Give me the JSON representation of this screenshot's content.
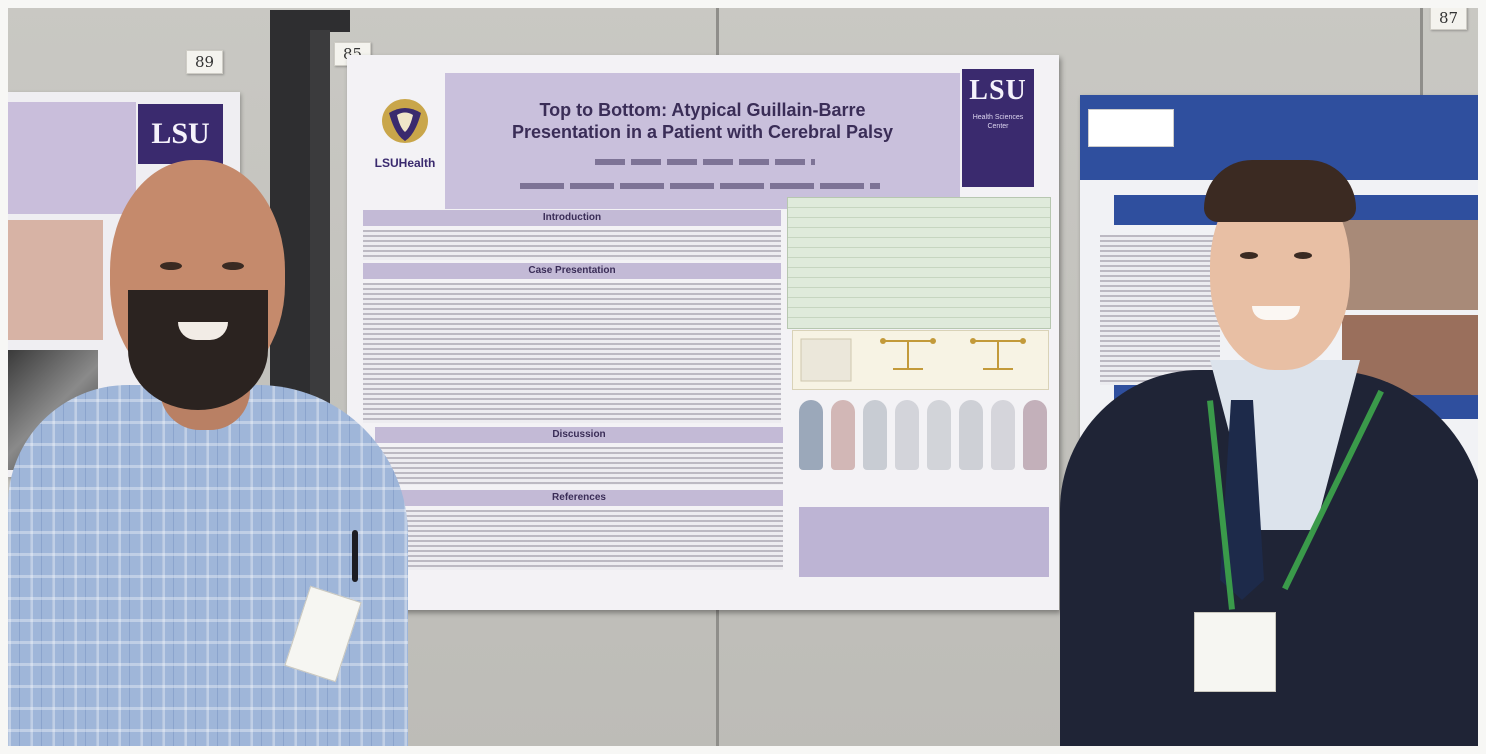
{
  "scene": {
    "description_hidden": false,
    "tags": {
      "left": "89",
      "center": "85",
      "right": "87"
    },
    "center_poster": {
      "title_line1": "Top to Bottom: Atypical Guillain-Barre",
      "title_line2": "Presentation in a Patient with Cerebral Palsy",
      "logo_lsu": "LSU",
      "logo_lsu_sub": "Health Sciences Center",
      "logo_lsuhealth": "LSUHealth",
      "sections": {
        "introduction": "Introduction",
        "case_presentation": "Case Presentation",
        "discussion": "Discussion",
        "references": "References"
      }
    },
    "left_poster": {
      "logo_lsu": "LSU"
    },
    "colors": {
      "lsu_purple": "#3a2a6e",
      "title_band": "#c9c0dc",
      "right_poster_blue": "#2f4f9e",
      "lanyard_green": "#3a9a4a"
    }
  }
}
